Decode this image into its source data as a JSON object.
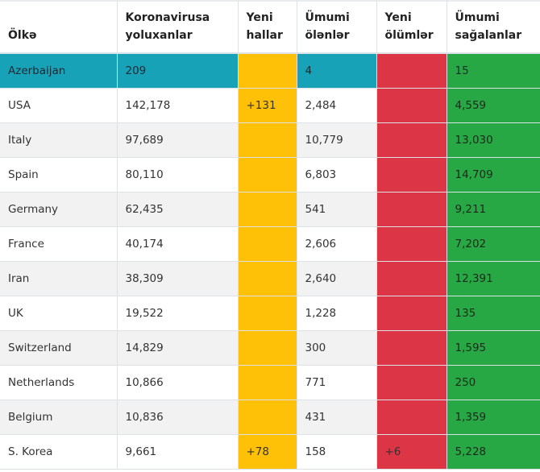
{
  "headers": {
    "country": "Ölkə",
    "cases": "Koronavirusa\nyoluxanlar",
    "new_cases": "Yeni\nhallar",
    "deaths": "Ümumi\nölənlər",
    "new_deaths": "Yeni\nölümlər",
    "recovered": "Ümumi\nsağalanlar"
  },
  "rows": [
    {
      "country": "Azerbaijan",
      "cases": "209",
      "new_cases": "",
      "deaths": "4",
      "new_deaths": "",
      "recovered": "15"
    },
    {
      "country": "USA",
      "cases": "142,178",
      "new_cases": "+131",
      "deaths": "2,484",
      "new_deaths": "",
      "recovered": "4,559"
    },
    {
      "country": "Italy",
      "cases": "97,689",
      "new_cases": "",
      "deaths": "10,779",
      "new_deaths": "",
      "recovered": "13,030"
    },
    {
      "country": "Spain",
      "cases": "80,110",
      "new_cases": "",
      "deaths": "6,803",
      "new_deaths": "",
      "recovered": "14,709"
    },
    {
      "country": "Germany",
      "cases": "62,435",
      "new_cases": "",
      "deaths": "541",
      "new_deaths": "",
      "recovered": "9,211"
    },
    {
      "country": "France",
      "cases": "40,174",
      "new_cases": "",
      "deaths": "2,606",
      "new_deaths": "",
      "recovered": "7,202"
    },
    {
      "country": "Iran",
      "cases": "38,309",
      "new_cases": "",
      "deaths": "2,640",
      "new_deaths": "",
      "recovered": "12,391"
    },
    {
      "country": "UK",
      "cases": "19,522",
      "new_cases": "",
      "deaths": "1,228",
      "new_deaths": "",
      "recovered": "135"
    },
    {
      "country": "Switzerland",
      "cases": "14,829",
      "new_cases": "",
      "deaths": "300",
      "new_deaths": "",
      "recovered": "1,595"
    },
    {
      "country": "Netherlands",
      "cases": "10,866",
      "new_cases": "",
      "deaths": "771",
      "new_deaths": "",
      "recovered": "250"
    },
    {
      "country": "Belgium",
      "cases": "10,836",
      "new_cases": "",
      "deaths": "431",
      "new_deaths": "",
      "recovered": "1,359"
    },
    {
      "country": "S. Korea",
      "cases": "9,661",
      "new_cases": "+78",
      "deaths": "158",
      "new_deaths": "+6",
      "recovered": "5,228"
    }
  ],
  "colors": {
    "highlight_row": "#17a2b8",
    "new_cases": "#ffc107",
    "new_deaths": "#dc3545",
    "recovered": "#28a745"
  }
}
